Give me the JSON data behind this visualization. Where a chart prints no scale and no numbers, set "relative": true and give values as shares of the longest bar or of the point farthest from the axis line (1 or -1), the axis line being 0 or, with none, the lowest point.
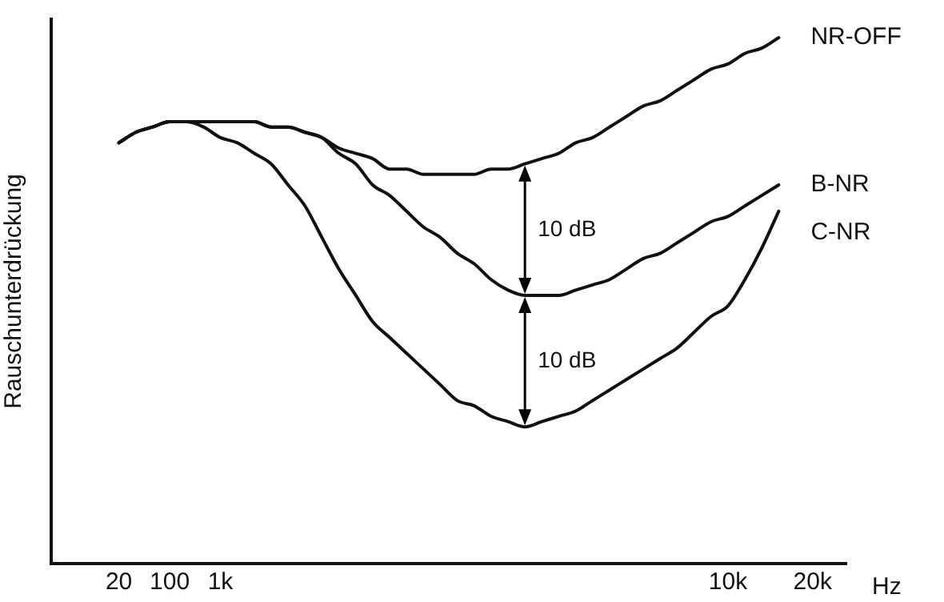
{
  "chart_data": {
    "type": "line",
    "relative": true,
    "ylabel": "Rauschunterdrückung",
    "xlabel": "Hz",
    "categories": [
      null,
      null,
      null,
      null,
      "20",
      null,
      null,
      "100",
      null,
      null,
      "1k",
      null,
      null,
      null,
      null,
      null,
      null,
      null,
      null,
      null,
      null,
      null,
      null,
      null,
      null,
      null,
      null,
      null,
      null,
      null,
      null,
      null,
      null,
      null,
      null,
      null,
      null,
      null,
      null,
      null,
      "10k",
      null,
      null,
      null,
      null,
      "20k",
      null,
      null
    ],
    "grid": false,
    "legend": false,
    "marker": "none",
    "line_style": "solid",
    "series": [
      {
        "name": "NR-OFF",
        "color": "#111111",
        "values": [
          null,
          null,
          null,
          null,
          0.8,
          0.82,
          0.83,
          0.84,
          0.84,
          0.84,
          0.84,
          0.84,
          0.84,
          0.83,
          0.83,
          0.82,
          0.81,
          0.79,
          0.78,
          0.77,
          0.75,
          0.75,
          0.74,
          0.74,
          0.74,
          0.74,
          0.75,
          0.75,
          0.76,
          0.77,
          0.78,
          0.8,
          0.81,
          0.83,
          0.85,
          0.87,
          0.88,
          0.9,
          0.92,
          0.94,
          0.95,
          0.97,
          0.98,
          1.0,
          null,
          null,
          null,
          null
        ]
      },
      {
        "name": "B-NR",
        "color": "#111111",
        "values": [
          null,
          null,
          null,
          null,
          0.8,
          0.82,
          0.83,
          0.84,
          0.84,
          0.84,
          0.84,
          0.84,
          0.84,
          0.83,
          0.83,
          0.82,
          0.81,
          0.78,
          0.76,
          0.72,
          0.7,
          0.67,
          0.64,
          0.62,
          0.59,
          0.57,
          0.54,
          0.52,
          0.51,
          0.51,
          0.51,
          0.52,
          0.53,
          0.54,
          0.56,
          0.58,
          0.59,
          0.61,
          0.63,
          0.65,
          0.66,
          0.68,
          0.7,
          0.72,
          null,
          null,
          null,
          null
        ]
      },
      {
        "name": "C-NR",
        "color": "#111111",
        "values": [
          null,
          null,
          null,
          null,
          0.8,
          0.82,
          0.83,
          0.84,
          0.84,
          0.83,
          0.81,
          0.8,
          0.78,
          0.76,
          0.72,
          0.68,
          0.62,
          0.56,
          0.51,
          0.46,
          0.43,
          0.4,
          0.37,
          0.34,
          0.31,
          0.3,
          0.28,
          0.27,
          0.26,
          0.27,
          0.28,
          0.29,
          0.31,
          0.33,
          0.35,
          0.37,
          0.39,
          0.41,
          0.44,
          0.47,
          0.49,
          0.54,
          0.6,
          0.67,
          null,
          null,
          null,
          null
        ]
      }
    ],
    "annotations": [
      "10 dB",
      "10 dB"
    ]
  }
}
